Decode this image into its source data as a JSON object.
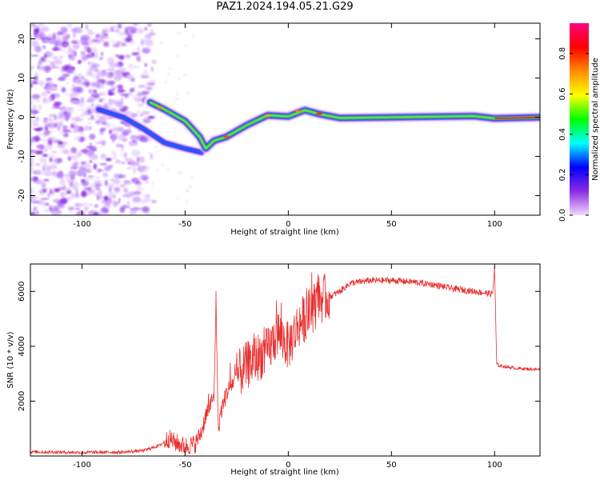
{
  "title": "PAZ1.2024.194.05.21.G29",
  "colors": {
    "snr_line": "#e83030",
    "frame": "#000000"
  },
  "chart_data": [
    {
      "type": "heatmap",
      "xlabel": "Height of straight line (km)",
      "ylabel": "Frequency (Hz)",
      "xlim": [
        -125,
        122
      ],
      "ylim": [
        -25,
        24
      ],
      "xticks": [
        -100,
        -50,
        0,
        50,
        100
      ],
      "yticks": [
        20,
        10,
        0,
        -10,
        -20
      ],
      "colorbar": {
        "label": "Normalized spectral amplitude",
        "ticks": [
          "0.0",
          "0.2",
          "0.4",
          "0.6",
          "0.8"
        ],
        "range": [
          0,
          0.95
        ],
        "colormap": [
          "#f0d9ff",
          "#8a2be2",
          "#0000ff",
          "#00ffff",
          "#00ff00",
          "#ffff00",
          "#ff8c00",
          "#ff0000",
          "#ff007f"
        ]
      },
      "ridge": [
        {
          "x": -67,
          "y": 3.8
        },
        {
          "x": -60,
          "y": 2.0
        },
        {
          "x": -50,
          "y": -1.0
        },
        {
          "x": -43,
          "y": -5.0
        },
        {
          "x": -40,
          "y": -8.0
        },
        {
          "x": -36,
          "y": -6.0
        },
        {
          "x": -30,
          "y": -5.0
        },
        {
          "x": -20,
          "y": -2.0
        },
        {
          "x": -10,
          "y": 0.5
        },
        {
          "x": 0,
          "y": 0.2
        },
        {
          "x": 8,
          "y": 1.8
        },
        {
          "x": 15,
          "y": 0.8
        },
        {
          "x": 25,
          "y": -0.2
        },
        {
          "x": 50,
          "y": 0.0
        },
        {
          "x": 90,
          "y": 0.3
        },
        {
          "x": 100,
          "y": -0.3
        },
        {
          "x": 122,
          "y": 0.0
        }
      ],
      "ridge2": [
        {
          "x": -92,
          "y": 2.0
        },
        {
          "x": -80,
          "y": 0.0
        },
        {
          "x": -70,
          "y": -3.0
        },
        {
          "x": -60,
          "y": -6.5
        },
        {
          "x": -50,
          "y": -8.0
        },
        {
          "x": -42,
          "y": -9.0
        }
      ]
    },
    {
      "type": "line",
      "xlabel": "Height of straight line (km)",
      "ylabel": "SNR (10 * v/v)",
      "xlim": [
        -125,
        122
      ],
      "ylim": [
        0,
        7000
      ],
      "xticks": [
        -100,
        -50,
        0,
        50,
        100
      ],
      "yticks": [
        2000,
        4000,
        6000
      ],
      "series": [
        {
          "x": [
            -125,
            -100,
            -80,
            -70,
            -62,
            -58,
            -55,
            -50,
            -45,
            -42,
            -40,
            -38,
            -36,
            -35,
            -34,
            -33,
            -30,
            -25,
            -20,
            -15,
            -10,
            -5,
            0,
            5,
            10,
            15,
            20,
            25,
            30,
            40,
            50,
            60,
            70,
            80,
            90,
            95,
            99,
            100,
            101,
            102,
            110,
            122
          ],
          "y": [
            150,
            130,
            140,
            200,
            400,
            650,
            500,
            350,
            450,
            900,
            1500,
            1800,
            2200,
            5800,
            900,
            1500,
            2300,
            2900,
            3300,
            3600,
            3800,
            4500,
            4000,
            4800,
            5200,
            5700,
            5800,
            6000,
            6300,
            6400,
            6400,
            6350,
            6250,
            6100,
            6000,
            5950,
            5900,
            6900,
            3350,
            3300,
            3200,
            3150
          ]
        }
      ]
    }
  ]
}
